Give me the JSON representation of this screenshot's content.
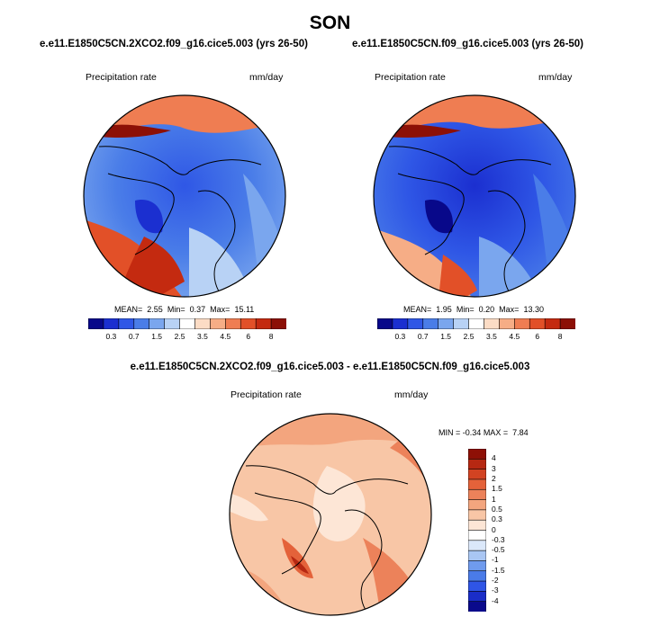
{
  "title": "SON",
  "colors": {
    "abs_scale": [
      "#08088a",
      "#1b2fd0",
      "#2f57e6",
      "#4a7de8",
      "#7aa6ee",
      "#b8d2f5",
      "#ffffff",
      "#fcdcc5",
      "#f6ad86",
      "#ef7d52",
      "#e25028",
      "#c42a10",
      "#8c1006"
    ],
    "diff_scale": [
      "#0a0a8c",
      "#1a2dc8",
      "#2f55e6",
      "#4a7be8",
      "#6f9bee",
      "#a9c6f3",
      "#dbe8fa",
      "#ffffff",
      "#fde6d6",
      "#f8c6a6",
      "#f3a57e",
      "#ec825a",
      "#e4623a",
      "#d24322",
      "#b62812",
      "#8e1006"
    ],
    "coast": "#000000"
  },
  "chart_data": [
    {
      "type": "heatmap",
      "title": "e.e11.E1850C5CN.2XCO2.f09_g16.cice5.003 (yrs 26-50)",
      "variable": "Precipitation rate",
      "units": "mm/day",
      "stats": {
        "mean_label": "MEAN=",
        "mean": "2.55",
        "min_label": "Min=",
        "min": "0.37",
        "max_label": "Max=",
        "max": "15.11"
      },
      "colorbar_ticks": [
        "0.3",
        "0.7",
        "1.5",
        "2.5",
        "3.5",
        "4.5",
        "6",
        "8"
      ]
    },
    {
      "type": "heatmap",
      "title": "e.e11.E1850C5CN.f09_g16.cice5.003 (yrs 26-50)",
      "variable": "Precipitation rate",
      "units": "mm/day",
      "stats": {
        "mean_label": "MEAN=",
        "mean": "1.95",
        "min_label": "Min=",
        "min": "0.20",
        "max_label": "Max=",
        "max": "13.30"
      },
      "colorbar_ticks": [
        "0.3",
        "0.7",
        "1.5",
        "2.5",
        "3.5",
        "4.5",
        "6",
        "8"
      ]
    },
    {
      "type": "heatmap",
      "title": "e.e11.E1850C5CN.2XCO2.f09_g16.cice5.003 - e.e11.E1850C5CN.f09_g16.cice5.003",
      "variable": "Precipitation rate",
      "units": "mm/day",
      "stats": {
        "min_label": "MIN =",
        "min": "-0.34",
        "max_label": "MAX =",
        "max": "7.84"
      },
      "colorbar_ticks": [
        "4",
        "3",
        "2",
        "1.5",
        "1",
        "0.5",
        "0.3",
        "0",
        "-0.3",
        "-0.5",
        "-1",
        "-1.5",
        "-2",
        "-3",
        "-4"
      ]
    }
  ]
}
